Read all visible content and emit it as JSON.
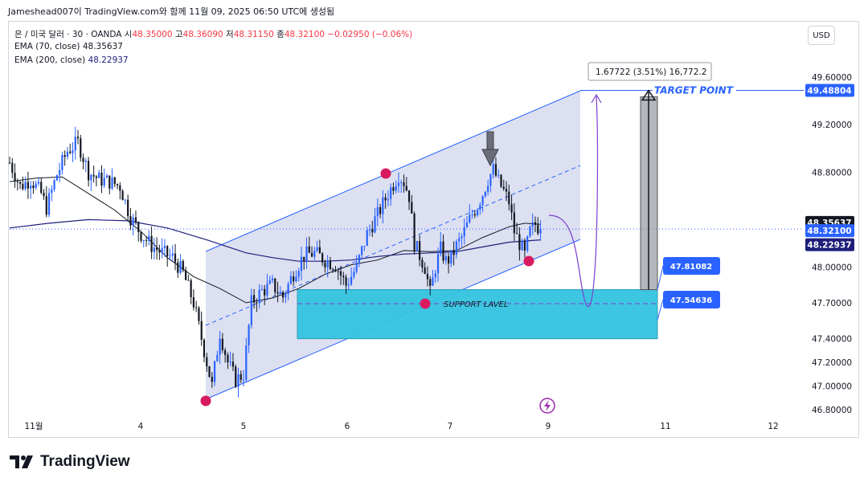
{
  "header": {
    "attribution": "Jameshead007이 TradingView.com와 함께 11월 09, 2025 06:50 UTC에 생성됨"
  },
  "legend": {
    "symbol": "은 / 미국 달러 · 30 · OANDA",
    "o_label": "시",
    "o_value": "48.35000",
    "h_label": "고",
    "h_value": "48.36090",
    "l_label": "저",
    "l_value": "48.31150",
    "c_label": "종",
    "c_value": "48.32100",
    "change": "−0.02950 (−0.06%)",
    "ema70_label": "EMA (70, close)",
    "ema70_value": "48.35637",
    "ema200_label": "EMA (200, close)",
    "ema200_value": "48.22937"
  },
  "currency_button": "USD",
  "brand": "TradingView",
  "colors": {
    "up_text": "#f23645",
    "candle_up": "#2962ff",
    "candle_down": "#131722",
    "channel_fill": "#c5cbe8",
    "channel_line": "#2962ff",
    "support_fill": "#33c3df",
    "support_border": "#2a9db5",
    "target_line": "#2962ff",
    "pivot_marker": "#d81b60",
    "measure_bar": "#9598a1",
    "ema70": "#131722",
    "ema200": "#1e1e7a",
    "projection": "#7b3fd1"
  },
  "chart_data": {
    "type": "candlestick",
    "symbol": "XAGUSD",
    "timeframe": "30",
    "x_tick_labels": [
      "11월",
      "4",
      "5",
      "6",
      "7",
      "9",
      "11",
      "12"
    ],
    "y_tick_labels": [
      "49.60000",
      "49.20000",
      "48.80000",
      "48.00000",
      "47.70000",
      "47.40000",
      "47.20000",
      "47.00000",
      "46.80000"
    ],
    "ylim": [
      46.71,
      49.81
    ],
    "grid": false,
    "price_labels": {
      "ema70": "48.35637",
      "last_close": "48.32100",
      "ema200": "48.22937",
      "target": "49.48804",
      "support_top": "47.81082",
      "support_bottom": "47.54636"
    },
    "annotations": {
      "target_text": "TARGET POINT",
      "support_text": "SUPPORT LAVEL",
      "measure_text": "1.67722 (3.51%) 16,772.2"
    },
    "price_path": [
      [
        0,
        48.88
      ],
      [
        4,
        48.68
      ],
      [
        8,
        48.74
      ],
      [
        12,
        48.62
      ],
      [
        14,
        48.5
      ],
      [
        18,
        48.78
      ],
      [
        22,
        48.98
      ],
      [
        26,
        49.05
      ],
      [
        30,
        48.8
      ],
      [
        34,
        48.74
      ],
      [
        38,
        48.72
      ],
      [
        42,
        48.68
      ],
      [
        46,
        48.42
      ],
      [
        50,
        48.28
      ],
      [
        54,
        48.18
      ],
      [
        58,
        48.12
      ],
      [
        62,
        48.08
      ],
      [
        66,
        47.95
      ],
      [
        70,
        47.7
      ],
      [
        74,
        47.3
      ],
      [
        77,
        47.0
      ],
      [
        80,
        47.45
      ],
      [
        83,
        47.2
      ],
      [
        86,
        47.05
      ],
      [
        89,
        47.1
      ],
      [
        92,
        47.7
      ],
      [
        96,
        47.8
      ],
      [
        100,
        47.85
      ],
      [
        104,
        47.75
      ],
      [
        108,
        47.95
      ],
      [
        112,
        48.1
      ],
      [
        116,
        48.12
      ],
      [
        120,
        48.06
      ],
      [
        124,
        48.02
      ],
      [
        128,
        47.85
      ],
      [
        132,
        48.0
      ],
      [
        136,
        48.28
      ],
      [
        140,
        48.44
      ],
      [
        144,
        48.62
      ],
      [
        148,
        48.78
      ],
      [
        150,
        48.72
      ],
      [
        152,
        48.6
      ],
      [
        154,
        48.2
      ],
      [
        156,
        48.1
      ],
      [
        158,
        48.0
      ],
      [
        160,
        47.78
      ],
      [
        162,
        48.0
      ],
      [
        164,
        48.15
      ],
      [
        166,
        48.05
      ],
      [
        168,
        48.08
      ],
      [
        170,
        48.18
      ],
      [
        172,
        48.25
      ],
      [
        174,
        48.35
      ],
      [
        176,
        48.45
      ],
      [
        178,
        48.52
      ],
      [
        180,
        48.62
      ],
      [
        182,
        48.74
      ],
      [
        184,
        48.82
      ],
      [
        186,
        48.72
      ],
      [
        188,
        48.64
      ],
      [
        190,
        48.55
      ],
      [
        192,
        48.3
      ],
      [
        194,
        48.2
      ],
      [
        196,
        48.1
      ],
      [
        198,
        48.3
      ],
      [
        200,
        48.36
      ],
      [
        202,
        48.32
      ]
    ],
    "ema70_path": [
      [
        0,
        48.72
      ],
      [
        10,
        48.75
      ],
      [
        20,
        48.76
      ],
      [
        30,
        48.62
      ],
      [
        40,
        48.48
      ],
      [
        50,
        48.3
      ],
      [
        60,
        48.08
      ],
      [
        70,
        47.92
      ],
      [
        80,
        47.82
      ],
      [
        90,
        47.7
      ],
      [
        100,
        47.74
      ],
      [
        110,
        47.82
      ],
      [
        120,
        47.94
      ],
      [
        130,
        48.02
      ],
      [
        140,
        48.06
      ],
      [
        150,
        48.14
      ],
      [
        160,
        48.13
      ],
      [
        170,
        48.14
      ],
      [
        180,
        48.25
      ],
      [
        190,
        48.34
      ],
      [
        196,
        48.37
      ],
      [
        202,
        48.36
      ]
    ],
    "ema200_path": [
      [
        0,
        48.33
      ],
      [
        15,
        48.37
      ],
      [
        30,
        48.4
      ],
      [
        45,
        48.39
      ],
      [
        60,
        48.33
      ],
      [
        75,
        48.23
      ],
      [
        90,
        48.12
      ],
      [
        100,
        48.08
      ],
      [
        110,
        48.05
      ],
      [
        120,
        48.05
      ],
      [
        130,
        48.06
      ],
      [
        140,
        48.09
      ],
      [
        150,
        48.11
      ],
      [
        160,
        48.12
      ],
      [
        170,
        48.13
      ],
      [
        180,
        48.17
      ],
      [
        190,
        48.21
      ],
      [
        202,
        48.23
      ]
    ]
  }
}
